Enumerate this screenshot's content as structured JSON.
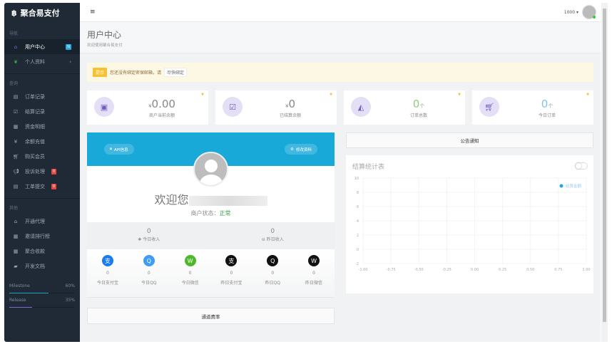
{
  "brand": {
    "icon": "bitcoin-icon",
    "name": "聚合易支付"
  },
  "sidebar": {
    "sections": [
      "导航",
      "查询",
      "其他"
    ],
    "nav": [
      {
        "label": "用户中心",
        "icon": "home-icon",
        "badge": "N"
      },
      {
        "label": "个人资料",
        "icon": "leaf-icon"
      }
    ],
    "query": [
      {
        "label": "订单记录",
        "icon": "list-icon"
      },
      {
        "label": "结算记录",
        "icon": "check-square-icon"
      },
      {
        "label": "资金明细",
        "icon": "table-icon"
      },
      {
        "label": "余额充值",
        "icon": "yen-icon"
      },
      {
        "label": "购买会员",
        "icon": "cart-icon"
      },
      {
        "label": "投诉处理",
        "icon": "bullhorn-icon",
        "badge": "0"
      },
      {
        "label": "工单提交",
        "icon": "list-icon",
        "badge": "0"
      }
    ],
    "other": [
      {
        "label": "开通代理",
        "icon": "shop-icon"
      },
      {
        "label": "邀请排行榜",
        "icon": "grid-icon"
      },
      {
        "label": "聚合收款",
        "icon": "grid-icon"
      },
      {
        "label": "开发文档",
        "icon": "book-icon"
      }
    ],
    "progress": [
      {
        "label": "Milestone",
        "value": "60%",
        "fraction": 0.6,
        "color": "#1ea0c0"
      },
      {
        "label": "Release",
        "value": "35%",
        "fraction": 0.35,
        "color": "#7b68d6"
      }
    ]
  },
  "topbar": {
    "menu_icon": "menu-icon",
    "balance": "1000 ▾",
    "online_color": "#2ecc40"
  },
  "page": {
    "title": "用户中心",
    "subtitle": "欢迎使用聚合易支付"
  },
  "alert": {
    "tag": "提示",
    "text": "您还没有绑定密保邮箱，请",
    "link": "尽快绑定"
  },
  "cards": [
    {
      "prefix": "¥",
      "value": "0.00",
      "suffix": "",
      "label": "商户当前余额",
      "icon": "money-icon",
      "color": "#888"
    },
    {
      "prefix": "¥",
      "value": "0",
      "suffix": "",
      "label": "已结算余额",
      "icon": "check-square-icon",
      "color": "#888"
    },
    {
      "prefix": "",
      "value": "0",
      "suffix": "个",
      "label": "订单总数",
      "icon": "area-chart-icon",
      "color": "#8bd07a"
    },
    {
      "prefix": "",
      "value": "0",
      "suffix": "个",
      "label": "今日订单",
      "icon": "cart-plus-icon",
      "color": "#7cc6ea"
    }
  ],
  "user": {
    "api_btn": "API信息",
    "edit_btn": "修改资料",
    "welcome": "欢迎您",
    "status_label": "商户状态：",
    "status": "正常",
    "today_income": "0",
    "today_label": "今日收入",
    "yesterday_income": "0",
    "yesterday_label": "昨日收入",
    "pays": [
      {
        "value": "0",
        "label": "今日支付宝",
        "icon": "alipay-icon",
        "color": "#1a7cf0",
        "glyph": "支"
      },
      {
        "value": "0",
        "label": "今日QQ",
        "icon": "qq-icon",
        "color": "#3d9cf5",
        "glyph": "Q"
      },
      {
        "value": "0",
        "label": "今日微信",
        "icon": "wechat-icon",
        "color": "#4cb82a",
        "glyph": "W"
      },
      {
        "value": "0",
        "label": "昨日支付宝",
        "icon": "alipay-icon",
        "color": "#111",
        "glyph": "支"
      },
      {
        "value": "0",
        "label": "昨日QQ",
        "icon": "qq-icon",
        "color": "#111",
        "glyph": "Q"
      },
      {
        "value": "0",
        "label": "昨日微信",
        "icon": "wechat-icon",
        "color": "#111",
        "glyph": "W"
      }
    ],
    "rate_btn": "通道费率"
  },
  "notice_btn": "公告通知",
  "chart_data": {
    "type": "line",
    "title": "结算统计表",
    "xlim": [
      -1,
      1
    ],
    "ylim": [
      -2,
      10
    ],
    "xticks": [
      "-1.00",
      "-0.75",
      "-0.50",
      "-0.25",
      "0.00",
      "0.25",
      "0.50",
      "0.75",
      "1.00"
    ],
    "yticks": [
      "10",
      "8",
      "6",
      "4",
      "2",
      "0",
      "-2"
    ],
    "grid": true,
    "legend_position": "top-right",
    "series": [
      {
        "name": "结算金额",
        "color": "#19a9e8",
        "x": [],
        "y": []
      }
    ]
  }
}
